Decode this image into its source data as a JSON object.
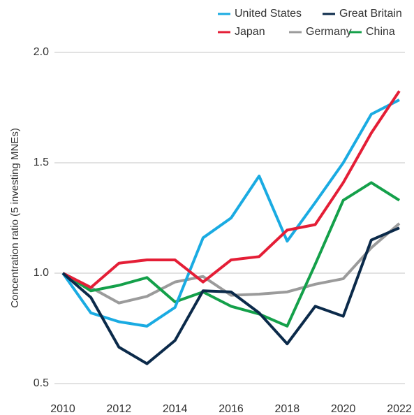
{
  "chart_data": {
    "type": "line",
    "y_label": "Concentration ratio (5 investing MNEs)",
    "x": [
      2010,
      2011,
      2012,
      2013,
      2014,
      2015,
      2016,
      2017,
      2018,
      2019,
      2020,
      2021,
      2022
    ],
    "xlim": [
      2010,
      2022
    ],
    "xticks": [
      2010,
      2012,
      2014,
      2016,
      2018,
      2020,
      2022
    ],
    "ylim": [
      0.5,
      2.0
    ],
    "yticks": [
      0.5,
      {
        "value": 1.0,
        "label": "1.0"
      },
      1.5,
      {
        "value": 2.0,
        "label": "2.0"
      }
    ],
    "grid": true,
    "legend": "top-right",
    "series": [
      {
        "name": "United States",
        "color": "#1aabe2",
        "values": [
          1.0,
          0.82,
          0.78,
          0.76,
          0.845,
          1.16,
          1.25,
          1.44,
          1.145,
          1.32,
          1.5,
          1.72,
          1.785
        ]
      },
      {
        "name": "Great Britain",
        "color": "#0b2a4a",
        "values": [
          1.0,
          0.89,
          0.665,
          0.59,
          0.695,
          0.92,
          0.915,
          0.82,
          0.68,
          0.85,
          0.805,
          1.15,
          1.205
        ]
      },
      {
        "name": "Japan",
        "color": "#e41e36",
        "values": [
          1.0,
          0.935,
          1.045,
          1.06,
          1.06,
          0.96,
          1.06,
          1.075,
          1.195,
          1.22,
          1.41,
          1.635,
          1.825
        ]
      },
      {
        "name": "Germany",
        "color": "#9b9b9b",
        "values": [
          1.0,
          0.935,
          0.865,
          0.895,
          0.96,
          0.985,
          0.9,
          0.905,
          0.915,
          0.95,
          0.975,
          1.115,
          1.225
        ]
      },
      {
        "name": "China",
        "color": "#14a04a",
        "values": [
          1.0,
          0.92,
          0.945,
          0.98,
          0.87,
          0.915,
          0.85,
          0.815,
          0.76,
          1.04,
          1.33,
          1.41,
          1.33
        ]
      }
    ]
  }
}
